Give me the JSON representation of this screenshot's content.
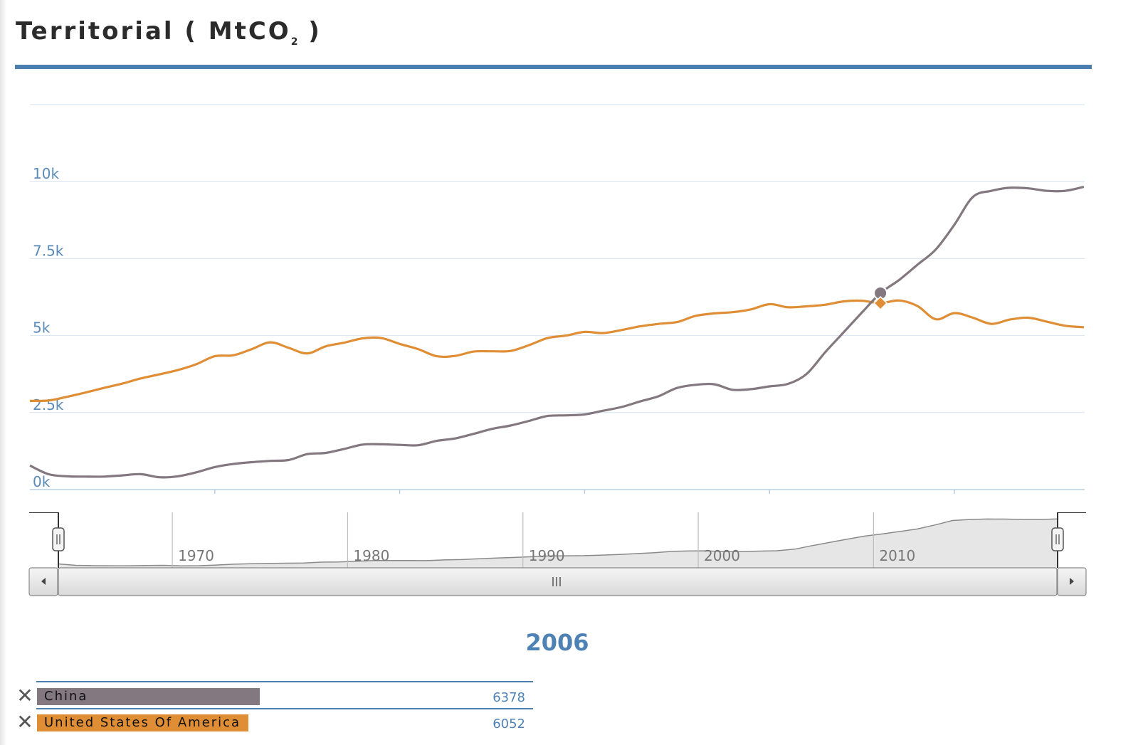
{
  "title": {
    "main": "Territorial ( MtCO",
    "sub": "2",
    "close": " )"
  },
  "colors": {
    "china": "#83787f",
    "usa": "#df8e36",
    "accent": "#4f82b4",
    "rule": "#4b7fb0"
  },
  "chart_data": {
    "type": "line",
    "x_ticks": [
      1970,
      1980,
      1990,
      2000,
      2010
    ],
    "y_ticks": [
      {
        "value": 0,
        "label": "0k"
      },
      {
        "value": 2500,
        "label": "2.5k"
      },
      {
        "value": 5000,
        "label": "5k"
      },
      {
        "value": 7500,
        "label": "7.5k"
      },
      {
        "value": 10000,
        "label": "10k"
      },
      {
        "value": 12500,
        "label": ""
      }
    ],
    "ylim": [
      0,
      12500
    ],
    "xlim": [
      1960,
      2017
    ],
    "highlight_year": 2006,
    "series": [
      {
        "name": "China",
        "color": "#83787f",
        "points": [
          [
            1960,
            780
          ],
          [
            1961,
            500
          ],
          [
            1962,
            430
          ],
          [
            1963,
            420
          ],
          [
            1964,
            420
          ],
          [
            1965,
            460
          ],
          [
            1966,
            500
          ],
          [
            1967,
            400
          ],
          [
            1968,
            430
          ],
          [
            1969,
            560
          ],
          [
            1970,
            730
          ],
          [
            1971,
            830
          ],
          [
            1972,
            890
          ],
          [
            1973,
            930
          ],
          [
            1974,
            960
          ],
          [
            1975,
            1150
          ],
          [
            1976,
            1190
          ],
          [
            1977,
            1320
          ],
          [
            1978,
            1460
          ],
          [
            1979,
            1470
          ],
          [
            1980,
            1450
          ],
          [
            1981,
            1440
          ],
          [
            1982,
            1580
          ],
          [
            1983,
            1660
          ],
          [
            1984,
            1810
          ],
          [
            1985,
            1970
          ],
          [
            1986,
            2080
          ],
          [
            1987,
            2230
          ],
          [
            1988,
            2390
          ],
          [
            1989,
            2410
          ],
          [
            1990,
            2440
          ],
          [
            1991,
            2560
          ],
          [
            1992,
            2680
          ],
          [
            1993,
            2860
          ],
          [
            1994,
            3030
          ],
          [
            1995,
            3300
          ],
          [
            1996,
            3400
          ],
          [
            1997,
            3420
          ],
          [
            1998,
            3240
          ],
          [
            1999,
            3260
          ],
          [
            2000,
            3350
          ],
          [
            2001,
            3430
          ],
          [
            2002,
            3750
          ],
          [
            2003,
            4450
          ],
          [
            2004,
            5100
          ],
          [
            2005,
            5750
          ],
          [
            2006,
            6378
          ],
          [
            2007,
            6800
          ],
          [
            2008,
            7300
          ],
          [
            2009,
            7800
          ],
          [
            2010,
            8600
          ],
          [
            2011,
            9500
          ],
          [
            2012,
            9700
          ],
          [
            2013,
            9800
          ],
          [
            2014,
            9780
          ],
          [
            2015,
            9700
          ],
          [
            2016,
            9700
          ],
          [
            2017,
            9830
          ]
        ]
      },
      {
        "name": "United States Of America",
        "color": "#df8e36",
        "points": [
          [
            1960,
            2880
          ],
          [
            1961,
            2890
          ],
          [
            1962,
            3010
          ],
          [
            1963,
            3150
          ],
          [
            1964,
            3300
          ],
          [
            1965,
            3440
          ],
          [
            1966,
            3610
          ],
          [
            1967,
            3740
          ],
          [
            1968,
            3880
          ],
          [
            1969,
            4070
          ],
          [
            1970,
            4330
          ],
          [
            1971,
            4360
          ],
          [
            1972,
            4560
          ],
          [
            1973,
            4780
          ],
          [
            1974,
            4600
          ],
          [
            1975,
            4420
          ],
          [
            1976,
            4650
          ],
          [
            1977,
            4770
          ],
          [
            1978,
            4910
          ],
          [
            1979,
            4920
          ],
          [
            1980,
            4730
          ],
          [
            1981,
            4560
          ],
          [
            1982,
            4330
          ],
          [
            1983,
            4340
          ],
          [
            1984,
            4480
          ],
          [
            1985,
            4490
          ],
          [
            1986,
            4500
          ],
          [
            1987,
            4690
          ],
          [
            1988,
            4920
          ],
          [
            1989,
            5000
          ],
          [
            1990,
            5120
          ],
          [
            1991,
            5080
          ],
          [
            1992,
            5180
          ],
          [
            1993,
            5300
          ],
          [
            1994,
            5380
          ],
          [
            1995,
            5440
          ],
          [
            1996,
            5640
          ],
          [
            1997,
            5720
          ],
          [
            1998,
            5760
          ],
          [
            1999,
            5850
          ],
          [
            2000,
            6020
          ],
          [
            2001,
            5920
          ],
          [
            2002,
            5950
          ],
          [
            2003,
            6000
          ],
          [
            2004,
            6110
          ],
          [
            2005,
            6130
          ],
          [
            2006,
            6052
          ],
          [
            2007,
            6140
          ],
          [
            2008,
            5960
          ],
          [
            2009,
            5530
          ],
          [
            2010,
            5730
          ],
          [
            2011,
            5580
          ],
          [
            2012,
            5380
          ],
          [
            2013,
            5520
          ],
          [
            2014,
            5580
          ],
          [
            2015,
            5450
          ],
          [
            2016,
            5320
          ],
          [
            2017,
            5270
          ]
        ]
      }
    ]
  },
  "navigator": {
    "ticks": [
      "1970",
      "1980",
      "1990",
      "2000",
      "2010"
    ]
  },
  "selection": {
    "year": "2006",
    "items": [
      {
        "name": "China",
        "value": "6378",
        "fraction": 0.6378
      },
      {
        "name": "United States Of America",
        "value": "6052",
        "fraction": 0.6052
      }
    ]
  }
}
